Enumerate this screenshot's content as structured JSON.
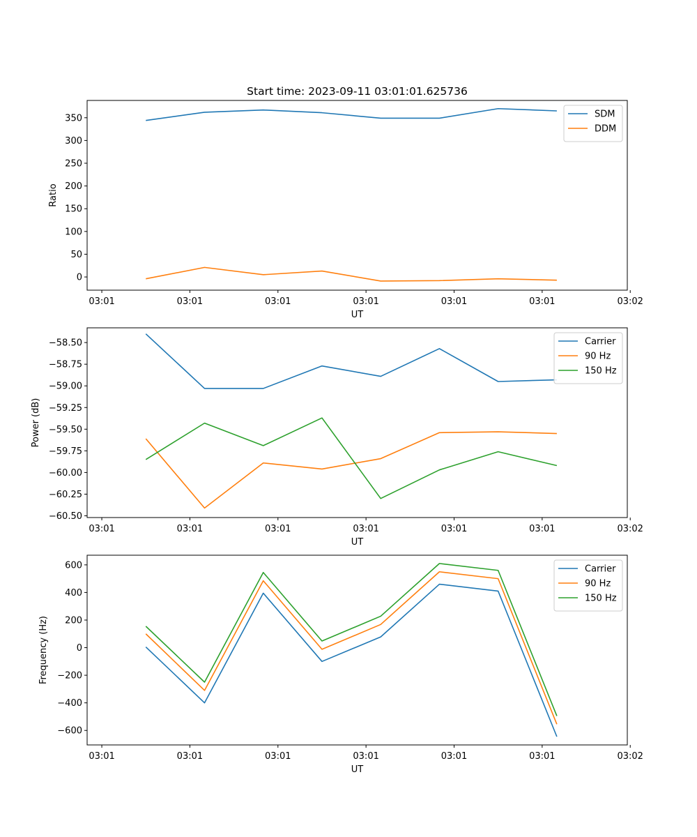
{
  "figure": {
    "title": "Start time: 2023-09-11 03:01:01.625736"
  },
  "colors": {
    "blue": "#1f77b4",
    "orange": "#ff7f0e",
    "green": "#2ca02c"
  },
  "chart_data": [
    {
      "type": "line",
      "title": "Start time: 2023-09-11 03:01:01.625736",
      "xlabel": "UT",
      "ylabel": "Ratio",
      "x": [
        1,
        2,
        3,
        4,
        5,
        6,
        7,
        8
      ],
      "xlim": [
        0,
        9.2
      ],
      "xticks": [
        0.25,
        1.75,
        3.25,
        4.75,
        6.25,
        7.75,
        9.25
      ],
      "xtick_labels": [
        "03:01",
        "03:01",
        "03:01",
        "03:01",
        "03:01",
        "03:01",
        "03:02"
      ],
      "ylim": [
        -29,
        388
      ],
      "yticks": [
        0,
        50,
        100,
        150,
        200,
        250,
        300,
        350
      ],
      "ytick_labels": [
        "0",
        "50",
        "100",
        "150",
        "200",
        "250",
        "300",
        "350"
      ],
      "legend_position": "top-right",
      "series": [
        {
          "name": "SDM",
          "color": "#1f77b4",
          "values": [
            344,
            362,
            367,
            361,
            349,
            349,
            370,
            365
          ]
        },
        {
          "name": "DDM",
          "color": "#ff7f0e",
          "values": [
            -4,
            21,
            5,
            13,
            -9,
            -8,
            -4,
            -7
          ]
        }
      ]
    },
    {
      "type": "line",
      "title": "",
      "xlabel": "UT",
      "ylabel": "Power (dB)",
      "x": [
        1,
        2,
        3,
        4,
        5,
        6,
        7,
        8
      ],
      "xlim": [
        0,
        9.2
      ],
      "xticks": [
        0.25,
        1.75,
        3.25,
        4.75,
        6.25,
        7.75,
        9.25
      ],
      "xtick_labels": [
        "03:01",
        "03:01",
        "03:01",
        "03:01",
        "03:01",
        "03:01",
        "03:02"
      ],
      "ylim": [
        -60.52,
        -58.33
      ],
      "yticks": [
        -58.5,
        -58.75,
        -59.0,
        -59.25,
        -59.5,
        -59.75,
        -60.0,
        -60.25,
        -60.5
      ],
      "ytick_labels": [
        "−58.50",
        "−58.75",
        "−59.00",
        "−59.25",
        "−59.50",
        "−59.75",
        "−60.00",
        "−60.25",
        "−60.50"
      ],
      "legend_position": "top-right",
      "series": [
        {
          "name": "Carrier",
          "color": "#1f77b4",
          "values": [
            -58.4,
            -59.03,
            -59.03,
            -58.77,
            -58.89,
            -58.57,
            -58.95,
            -58.93
          ]
        },
        {
          "name": "90 Hz",
          "color": "#ff7f0e",
          "values": [
            -59.61,
            -60.41,
            -59.89,
            -59.96,
            -59.84,
            -59.54,
            -59.53,
            -59.55
          ]
        },
        {
          "name": "150 Hz",
          "color": "#2ca02c",
          "values": [
            -59.85,
            -59.43,
            -59.69,
            -59.37,
            -60.3,
            -59.97,
            -59.76,
            -59.92
          ]
        }
      ]
    },
    {
      "type": "line",
      "title": "",
      "xlabel": "UT",
      "ylabel": "Frequency (Hz)",
      "x": [
        1,
        2,
        3,
        4,
        5,
        6,
        7,
        8
      ],
      "xlim": [
        0,
        9.2
      ],
      "xticks": [
        0.25,
        1.75,
        3.25,
        4.75,
        6.25,
        7.75,
        9.25
      ],
      "xtick_labels": [
        "03:01",
        "03:01",
        "03:01",
        "03:01",
        "03:01",
        "03:01",
        "03:02"
      ],
      "ylim": [
        -705,
        670
      ],
      "yticks": [
        -600,
        -400,
        -200,
        0,
        200,
        400,
        600
      ],
      "ytick_labels": [
        "−600",
        "−400",
        "−200",
        "0",
        "200",
        "400",
        "600"
      ],
      "legend_position": "top-right",
      "series": [
        {
          "name": "Carrier",
          "color": "#1f77b4",
          "values": [
            5,
            -400,
            395,
            -100,
            78,
            460,
            410,
            -645
          ]
        },
        {
          "name": "90 Hz",
          "color": "#ff7f0e",
          "values": [
            100,
            -310,
            485,
            -12,
            168,
            550,
            500,
            -555
          ]
        },
        {
          "name": "150 Hz",
          "color": "#2ca02c",
          "values": [
            155,
            -250,
            545,
            48,
            228,
            610,
            560,
            -495
          ]
        }
      ]
    }
  ]
}
